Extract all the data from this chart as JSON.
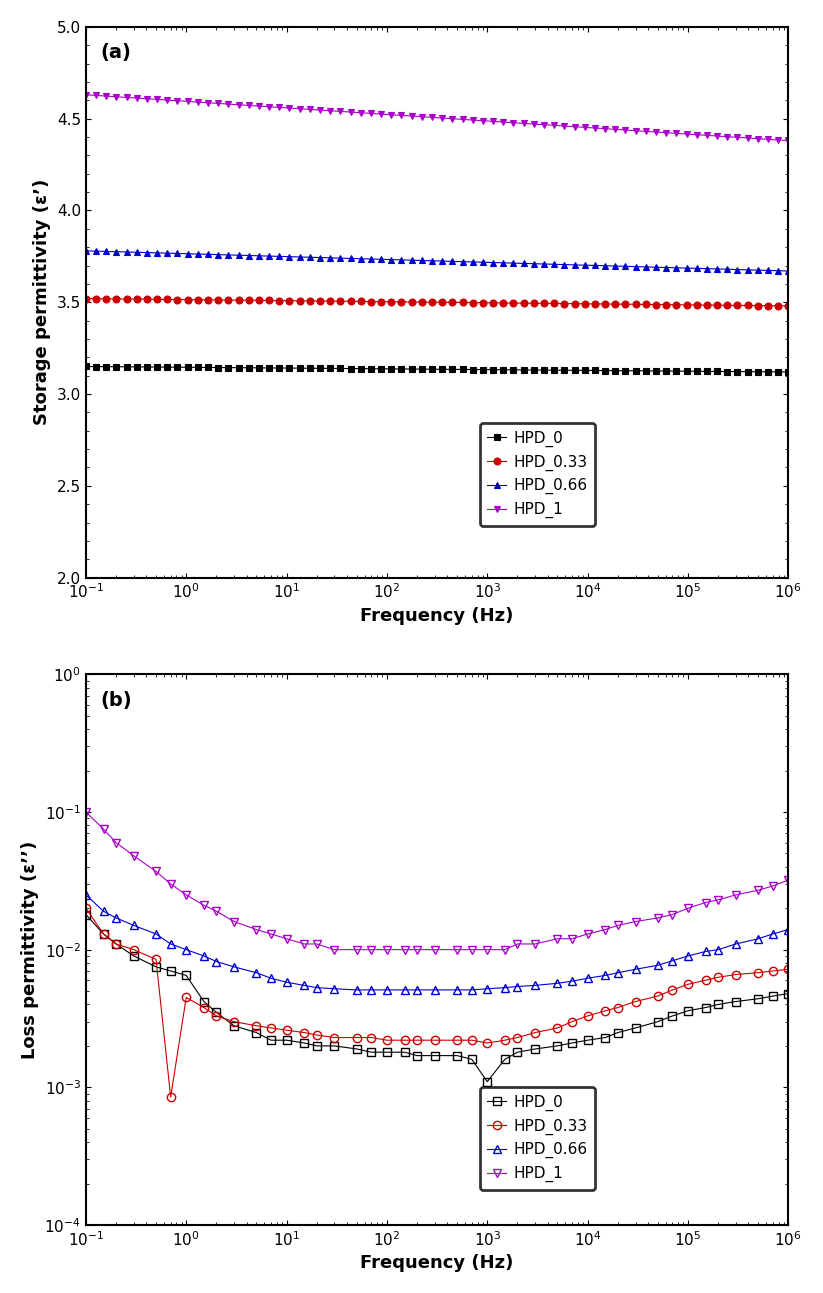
{
  "panel_a": {
    "title": "(a)",
    "ylabel": "Storage permittivity (ε’)",
    "xlabel": "Frequency (Hz)",
    "ylim": [
      2.0,
      5.0
    ],
    "xlim": [
      0.1,
      1000000.0
    ],
    "yticks": [
      2.0,
      2.5,
      3.0,
      3.5,
      4.0,
      4.5,
      5.0
    ],
    "series": [
      {
        "label": "HPD_0",
        "color": "#000000",
        "marker": "s",
        "markersize": 5,
        "filled": true,
        "y_start": 3.15,
        "y_end": 3.12,
        "num_points": 70
      },
      {
        "label": "HPD_0.33",
        "color": "#cc0000",
        "marker": "o",
        "markersize": 5,
        "filled": true,
        "y_start": 3.52,
        "y_end": 3.48,
        "num_points": 70
      },
      {
        "label": "HPD_0.66",
        "color": "#0000cc",
        "marker": "^",
        "markersize": 5,
        "filled": true,
        "y_start": 3.78,
        "y_end": 3.67,
        "num_points": 70
      },
      {
        "label": "HPD_1",
        "color": "#aa00cc",
        "marker": "v",
        "markersize": 5,
        "filled": true,
        "y_start": 4.63,
        "y_end": 4.38,
        "num_points": 70
      }
    ]
  },
  "panel_b": {
    "title": "(b)",
    "ylabel": "Loss permittivity (ε’’)",
    "xlabel": "Frequency (Hz)",
    "ylim": [
      0.0001,
      1.0
    ],
    "xlim": [
      0.1,
      1000000.0
    ],
    "series": [
      {
        "label": "HPD_0",
        "color": "#000000",
        "marker": "s",
        "markersize": 6,
        "filled": false,
        "freq": [
          0.1,
          0.15,
          0.2,
          0.3,
          0.5,
          0.7,
          1.0,
          1.5,
          2.0,
          3.0,
          5.0,
          7.0,
          10,
          15,
          20,
          30,
          50,
          70,
          100,
          150,
          200,
          300,
          500,
          700,
          1000,
          1500,
          2000,
          3000,
          5000,
          7000,
          10000,
          15000,
          20000,
          30000,
          50000,
          70000,
          100000,
          150000,
          200000,
          300000,
          500000,
          700000,
          1000000
        ],
        "values": [
          0.018,
          0.013,
          0.011,
          0.009,
          0.0075,
          0.007,
          0.0065,
          0.0042,
          0.0035,
          0.0028,
          0.0025,
          0.0022,
          0.0022,
          0.0021,
          0.002,
          0.002,
          0.0019,
          0.0018,
          0.0018,
          0.0018,
          0.0017,
          0.0017,
          0.0017,
          0.0016,
          0.0011,
          0.0016,
          0.0018,
          0.0019,
          0.002,
          0.0021,
          0.0022,
          0.0023,
          0.0025,
          0.0027,
          0.003,
          0.0033,
          0.0036,
          0.0038,
          0.004,
          0.0042,
          0.0044,
          0.0046,
          0.0048
        ]
      },
      {
        "label": "HPD_0.33",
        "color": "#cc0000",
        "marker": "o",
        "markersize": 6,
        "filled": false,
        "freq": [
          0.1,
          0.15,
          0.2,
          0.3,
          0.5,
          0.7,
          1.0,
          1.5,
          2.0,
          3.0,
          5.0,
          7.0,
          10,
          15,
          20,
          30,
          50,
          70,
          100,
          150,
          200,
          300,
          500,
          700,
          1000,
          1500,
          2000,
          3000,
          5000,
          7000,
          10000,
          15000,
          20000,
          30000,
          50000,
          70000,
          100000,
          150000,
          200000,
          300000,
          500000,
          700000,
          1000000
        ],
        "values": [
          0.02,
          0.013,
          0.011,
          0.01,
          0.0085,
          0.00085,
          0.0045,
          0.0038,
          0.0033,
          0.003,
          0.0028,
          0.0027,
          0.0026,
          0.0025,
          0.0024,
          0.0023,
          0.0023,
          0.0023,
          0.0022,
          0.0022,
          0.0022,
          0.0022,
          0.0022,
          0.0022,
          0.0021,
          0.0022,
          0.0023,
          0.0025,
          0.0027,
          0.003,
          0.0033,
          0.0036,
          0.0038,
          0.0042,
          0.0046,
          0.0051,
          0.0056,
          0.006,
          0.0063,
          0.0066,
          0.0068,
          0.007,
          0.0072
        ]
      },
      {
        "label": "HPD_0.66",
        "color": "#0000cc",
        "marker": "^",
        "markersize": 6,
        "filled": false,
        "freq": [
          0.1,
          0.15,
          0.2,
          0.3,
          0.5,
          0.7,
          1.0,
          1.5,
          2.0,
          3.0,
          5.0,
          7.0,
          10,
          15,
          20,
          30,
          50,
          70,
          100,
          150,
          200,
          300,
          500,
          700,
          1000,
          1500,
          2000,
          3000,
          5000,
          7000,
          10000,
          15000,
          20000,
          30000,
          50000,
          70000,
          100000,
          150000,
          200000,
          300000,
          500000,
          700000,
          1000000
        ],
        "values": [
          0.025,
          0.019,
          0.017,
          0.015,
          0.013,
          0.011,
          0.01,
          0.009,
          0.0082,
          0.0075,
          0.0068,
          0.0062,
          0.0058,
          0.0055,
          0.0053,
          0.0052,
          0.0051,
          0.0051,
          0.0051,
          0.0051,
          0.0051,
          0.0051,
          0.0051,
          0.0051,
          0.0052,
          0.0053,
          0.0054,
          0.0055,
          0.0057,
          0.0059,
          0.0062,
          0.0065,
          0.0068,
          0.0072,
          0.0077,
          0.0083,
          0.009,
          0.0097,
          0.01,
          0.011,
          0.012,
          0.013,
          0.014
        ]
      },
      {
        "label": "HPD_1",
        "color": "#aa00cc",
        "marker": "v",
        "markersize": 6,
        "filled": false,
        "freq": [
          0.1,
          0.15,
          0.2,
          0.3,
          0.5,
          0.7,
          1.0,
          1.5,
          2.0,
          3.0,
          5.0,
          7.0,
          10,
          15,
          20,
          30,
          50,
          70,
          100,
          150,
          200,
          300,
          500,
          700,
          1000,
          1500,
          2000,
          3000,
          5000,
          7000,
          10000,
          15000,
          20000,
          30000,
          50000,
          70000,
          100000,
          150000,
          200000,
          300000,
          500000,
          700000,
          1000000
        ],
        "values": [
          0.1,
          0.075,
          0.06,
          0.048,
          0.037,
          0.03,
          0.025,
          0.021,
          0.019,
          0.016,
          0.014,
          0.013,
          0.012,
          0.011,
          0.011,
          0.01,
          0.01,
          0.01,
          0.01,
          0.01,
          0.01,
          0.01,
          0.01,
          0.01,
          0.01,
          0.01,
          0.011,
          0.011,
          0.012,
          0.012,
          0.013,
          0.014,
          0.015,
          0.016,
          0.017,
          0.018,
          0.02,
          0.022,
          0.023,
          0.025,
          0.027,
          0.029,
          0.032
        ]
      }
    ]
  },
  "legend_labels": [
    "HPD_0",
    "HPD_0.33",
    "HPD_0.66",
    "HPD_1"
  ],
  "colors": [
    "#000000",
    "#cc0000",
    "#0000cc",
    "#aa00cc"
  ],
  "markers_a": [
    "s",
    "o",
    "^",
    "v"
  ],
  "markers_b": [
    "s",
    "o",
    "^",
    "v"
  ]
}
